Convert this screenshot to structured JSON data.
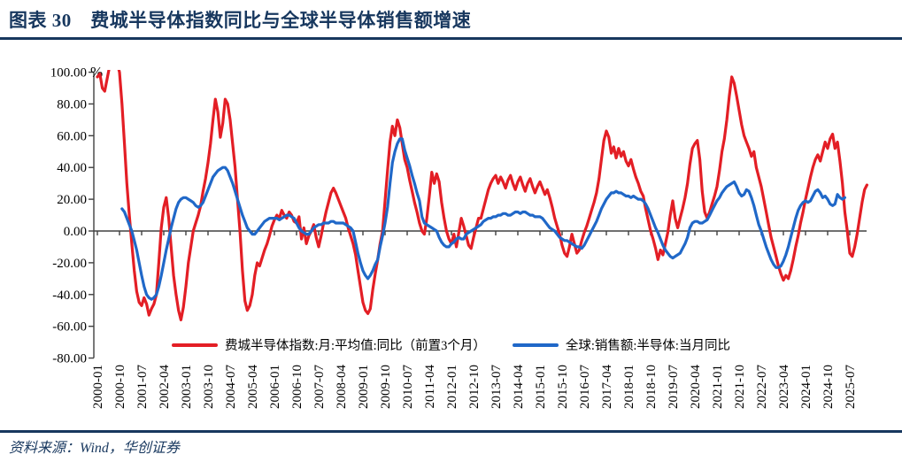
{
  "header": {
    "title": "图表 30　费城半导体指数同比与全球半导体销售额增速"
  },
  "footer": {
    "source_label": "资料来源：Wind，华创证券"
  },
  "colors": {
    "accent_navy": "#17375E",
    "red_series": "#E31E25",
    "blue_series": "#2068C8",
    "axis": "#404040"
  },
  "chart_data": {
    "type": "line",
    "title": "费城半导体指数同比与全球半导体销售额增速",
    "unit_label": "%",
    "grid": false,
    "legend_position": "bottom-center",
    "y_axis": {
      "min": -80,
      "max": 100,
      "tick_values": [
        100,
        80,
        60,
        40,
        20,
        0,
        -20,
        -40,
        -60,
        -80
      ],
      "tick_labels": [
        "100.00",
        "80.00",
        "60.00",
        "40.00",
        "20.00",
        "0.00",
        "-20.00",
        "-40.00",
        "-60.00",
        "-80.00"
      ]
    },
    "x_axis": {
      "start_month": "2000-01",
      "months_per_tick": 9,
      "tick_labels": [
        "2000-01",
        "2000-10",
        "2001-07",
        "2002-04",
        "2003-01",
        "2003-10",
        "2004-07",
        "2005-04",
        "2006-01",
        "2006-10",
        "2007-07",
        "2008-04",
        "2009-01",
        "2009-10",
        "2010-07",
        "2011-04",
        "2012-01",
        "2012-10",
        "2013-07",
        "2014-04",
        "2015-01",
        "2015-10",
        "2016-07",
        "2017-04",
        "2018-01",
        "2018-10",
        "2019-07",
        "2020-04",
        "2021-01",
        "2021-10",
        "2022-07",
        "2023-04",
        "2024-01",
        "2024-10",
        "2025-07"
      ]
    },
    "series": [
      {
        "name": "费城半导体指数:月:平均值:同比（前置3个月）",
        "color_key": "red_series",
        "start_month_index": 0,
        "values": [
          97,
          99,
          90,
          88,
          96,
          104,
          112,
          115,
          106,
          100,
          80,
          55,
          30,
          10,
          -8,
          -25,
          -38,
          -45,
          -47,
          -42,
          -46,
          -53,
          -49,
          -46,
          -40,
          -20,
          2,
          15,
          21,
          8,
          -10,
          -28,
          -40,
          -50,
          -56,
          -48,
          -35,
          -20,
          -10,
          0,
          5,
          10,
          16,
          25,
          33,
          43,
          55,
          70,
          83,
          75,
          59,
          68,
          83,
          80,
          70,
          55,
          40,
          20,
          0,
          -25,
          -44,
          -50,
          -47,
          -40,
          -28,
          -20,
          -22,
          -17,
          -12,
          -8,
          -3,
          3,
          7,
          10,
          8,
          13,
          10,
          8,
          12,
          10,
          6,
          5,
          9,
          -5,
          2,
          -8,
          -3,
          0,
          4,
          -4,
          -10,
          -3,
          5,
          12,
          18,
          24,
          27,
          24,
          20,
          16,
          12,
          8,
          2,
          -3,
          -8,
          -15,
          -25,
          -35,
          -45,
          -50,
          -52,
          -49,
          -37,
          -27,
          -18,
          -8,
          0,
          19,
          38,
          56,
          66,
          60,
          70,
          65,
          55,
          45,
          40,
          32,
          25,
          18,
          12,
          5,
          0,
          -2,
          8,
          22,
          37,
          30,
          36,
          31,
          18,
          8,
          0,
          -5,
          -8,
          -2,
          -10,
          -1,
          8,
          3,
          -3,
          -9,
          -11,
          -4,
          2,
          8,
          8,
          14,
          20,
          26,
          30,
          33,
          35,
          30,
          34,
          31,
          27,
          32,
          35,
          30,
          26,
          31,
          34,
          29,
          25,
          30,
          33,
          28,
          24,
          28,
          31,
          27,
          23,
          26,
          21,
          15,
          8,
          3,
          -2,
          -9,
          -14,
          -16,
          -10,
          -2,
          -8,
          -14,
          -12,
          -6,
          -1,
          3,
          8,
          13,
          18,
          24,
          33,
          45,
          57,
          63,
          59,
          49,
          53,
          46,
          52,
          47,
          50,
          44,
          41,
          45,
          39,
          34,
          30,
          25,
          22,
          14,
          7,
          0,
          -5,
          -11,
          -18,
          -12,
          -15,
          -8,
          -1,
          10,
          19,
          8,
          2,
          8,
          14,
          21,
          30,
          42,
          52,
          55,
          57,
          45,
          25,
          12,
          8,
          12,
          17,
          22,
          28,
          38,
          50,
          58,
          70,
          85,
          97,
          93,
          85,
          76,
          67,
          60,
          56,
          52,
          47,
          50,
          40,
          34,
          28,
          20,
          12,
          4,
          -4,
          -10,
          -16,
          -22,
          -27,
          -31,
          -28,
          -30,
          -25,
          -18,
          -10,
          -3,
          5,
          12,
          20,
          27,
          34,
          40,
          45,
          48,
          44,
          50,
          56,
          52,
          58,
          61,
          52,
          56,
          44,
          30,
          12,
          0,
          -14,
          -16,
          -10,
          -2,
          8,
          18,
          26,
          29
        ]
      },
      {
        "name": "全球:销售额:半导体:当月同比",
        "color_key": "blue_series",
        "start_month_index": 10,
        "values": [
          14,
          12,
          8,
          4,
          0,
          -6,
          -12,
          -20,
          -28,
          -35,
          -40,
          -42,
          -43,
          -42,
          -40,
          -35,
          -28,
          -20,
          -12,
          -5,
          2,
          8,
          14,
          18,
          20,
          21,
          21,
          20,
          19,
          18,
          16,
          15,
          16,
          18,
          22,
          26,
          30,
          34,
          36,
          38,
          39,
          40,
          40,
          38,
          34,
          30,
          25,
          20,
          15,
          10,
          6,
          2,
          0,
          -2,
          -2,
          0,
          2,
          4,
          6,
          7,
          8,
          8,
          8,
          8,
          7,
          8,
          9,
          10,
          10,
          9,
          8,
          5,
          2,
          0,
          -1,
          -2,
          -2,
          0,
          2,
          3,
          4,
          4,
          5,
          5,
          5,
          6,
          6,
          5,
          5,
          5,
          5,
          4,
          3,
          2,
          0,
          -7,
          -14,
          -20,
          -25,
          -28,
          -30,
          -28,
          -25,
          -21,
          -18,
          -10,
          -3,
          5,
          15,
          30,
          43,
          50,
          55,
          58,
          58,
          51,
          46,
          41,
          35,
          30,
          24,
          19,
          9,
          5,
          4,
          3,
          2,
          1,
          0,
          -4,
          -7,
          -9,
          -10,
          -10,
          -8,
          -7,
          -5,
          -4,
          -5,
          -5,
          -2,
          -1,
          0,
          1,
          2,
          3,
          4,
          6,
          7,
          8,
          8,
          9,
          9,
          10,
          10,
          11,
          11,
          10,
          10,
          11,
          12,
          12,
          11,
          12,
          12,
          11,
          10,
          10,
          9,
          9,
          9,
          8,
          6,
          4,
          2,
          1,
          0,
          -2,
          -4,
          -5,
          -6,
          -6,
          -7,
          -8,
          -9,
          -10,
          -10,
          -11,
          -9,
          -6,
          -3,
          0,
          3,
          6,
          10,
          14,
          17,
          20,
          22,
          24,
          24,
          25,
          24,
          24,
          23,
          22,
          22,
          21,
          22,
          21,
          20,
          20,
          19,
          17,
          14,
          10,
          6,
          2,
          -1,
          -5,
          -9,
          -12,
          -14,
          -16,
          -17,
          -16,
          -15,
          -14,
          -11,
          -8,
          -4,
          2,
          5,
          6,
          6,
          5,
          5,
          6,
          7,
          10,
          13,
          16,
          19,
          21,
          24,
          26,
          28,
          29,
          30,
          31,
          28,
          24,
          22,
          23,
          26,
          25,
          21,
          16,
          10,
          4,
          0,
          -5,
          -10,
          -14,
          -18,
          -21,
          -23,
          -23,
          -22,
          -19,
          -15,
          -10,
          -4,
          2,
          8,
          13,
          16,
          18,
          19,
          18,
          19,
          22,
          25,
          26,
          24,
          21,
          22,
          20,
          17,
          16,
          17,
          23,
          21,
          20,
          21
        ]
      }
    ]
  }
}
